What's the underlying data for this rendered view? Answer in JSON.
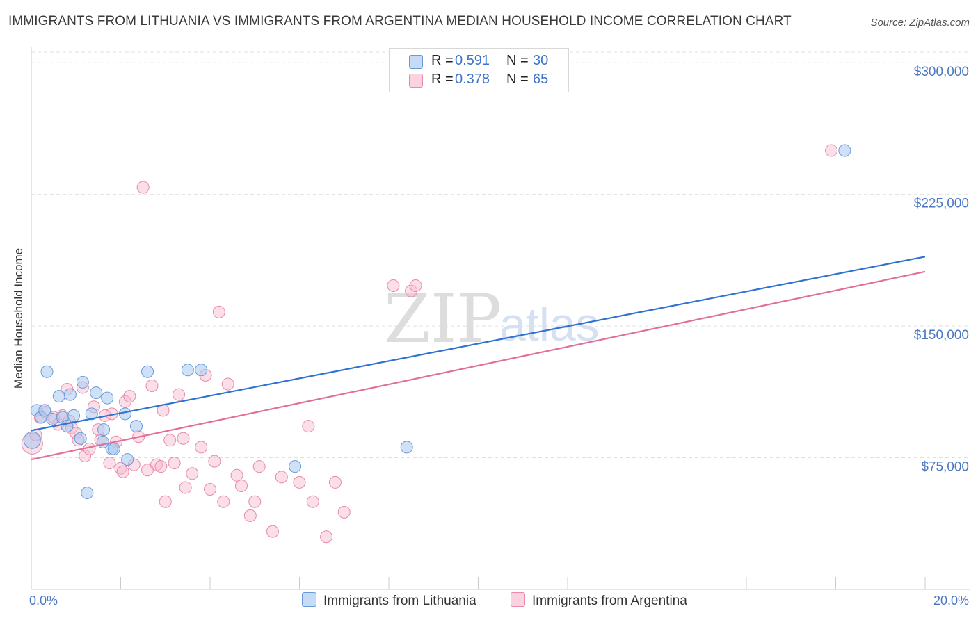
{
  "title": "IMMIGRANTS FROM LITHUANIA VS IMMIGRANTS FROM ARGENTINA MEDIAN HOUSEHOLD INCOME CORRELATION CHART",
  "source": "Source: ZipAtlas.com",
  "watermark": {
    "zip": "ZIP",
    "atlas": "atlas"
  },
  "legend": {
    "rows": [
      {
        "r_label": "R =",
        "r_value": "0.591",
        "n_label": "N =",
        "n_value": "30",
        "color": "#a8c8f0"
      },
      {
        "r_label": "R =",
        "r_value": "0.378",
        "n_label": "N =",
        "n_value": "65",
        "color": "#f6b8cc"
      }
    ]
  },
  "bottom_legend": {
    "lithuania": "Immigrants from Lithuania",
    "argentina": "Immigrants from Argentina"
  },
  "colors": {
    "lithuania_fill": "#a8c8f0",
    "lithuania_stroke": "#6a9ad8",
    "lithuania_line": "#2f72d0",
    "argentina_fill": "#f6b8cc",
    "argentina_stroke": "#e88aa8",
    "argentina_line": "#e0709a",
    "tick_text": "#4a78c4",
    "grid": "#e0e0e0"
  },
  "chart_data": {
    "type": "scatter",
    "title": "IMMIGRANTS FROM LITHUANIA VS IMMIGRANTS FROM ARGENTINA MEDIAN HOUSEHOLD INCOME CORRELATION CHART",
    "xlabel": "",
    "ylabel": "Median Household Income",
    "xlim": [
      0,
      20
    ],
    "ylim": [
      0,
      308000
    ],
    "x_tick_labels": [
      "0.0%",
      "20.0%"
    ],
    "y_ticks": [
      75000,
      150000,
      225000,
      300000
    ],
    "y_tick_labels": [
      "$75,000",
      "$150,000",
      "$225,000",
      "$300,000"
    ],
    "grid": true,
    "legend_position": "top-center",
    "series": [
      {
        "name": "Immigrants from Lithuania",
        "r": 0.591,
        "n": 30,
        "trend": {
          "x": [
            0,
            20
          ],
          "y": [
            90500,
            189500
          ]
        },
        "points": [
          [
            0.02,
            85000
          ],
          [
            0.12,
            102000
          ],
          [
            0.22,
            98000
          ],
          [
            0.3,
            102000
          ],
          [
            0.35,
            124000
          ],
          [
            0.47,
            97000
          ],
          [
            0.62,
            110000
          ],
          [
            0.7,
            98000
          ],
          [
            0.8,
            93000
          ],
          [
            0.87,
            111000
          ],
          [
            0.95,
            99000
          ],
          [
            1.1,
            86000
          ],
          [
            1.15,
            118000
          ],
          [
            1.35,
            100000
          ],
          [
            1.45,
            112000
          ],
          [
            1.6,
            84000
          ],
          [
            1.62,
            91000
          ],
          [
            1.7,
            109000
          ],
          [
            1.8,
            80000
          ],
          [
            1.85,
            80000
          ],
          [
            2.1,
            100000
          ],
          [
            2.15,
            74000
          ],
          [
            2.35,
            93000
          ],
          [
            2.6,
            124000
          ],
          [
            3.5,
            125000
          ],
          [
            3.8,
            125000
          ],
          [
            5.9,
            70000
          ],
          [
            1.25,
            55000
          ],
          [
            8.4,
            81000
          ],
          [
            18.2,
            250000
          ]
        ]
      },
      {
        "name": "Immigrants from Argentina",
        "r": 0.378,
        "n": 65,
        "trend": {
          "x": [
            0,
            20
          ],
          "y": [
            74000,
            181000
          ]
        },
        "points": [
          [
            0.02,
            83000
          ],
          [
            0.1,
            88000
          ],
          [
            0.2,
            98000
          ],
          [
            0.32,
            101000
          ],
          [
            0.5,
            98000
          ],
          [
            0.6,
            94000
          ],
          [
            0.7,
            99000
          ],
          [
            0.8,
            114000
          ],
          [
            0.85,
            96000
          ],
          [
            0.9,
            92000
          ],
          [
            1.0,
            89000
          ],
          [
            1.05,
            85000
          ],
          [
            1.15,
            115000
          ],
          [
            1.2,
            76000
          ],
          [
            1.3,
            80000
          ],
          [
            1.4,
            104000
          ],
          [
            1.5,
            91000
          ],
          [
            1.55,
            85000
          ],
          [
            1.65,
            99000
          ],
          [
            1.75,
            72000
          ],
          [
            1.8,
            100000
          ],
          [
            1.9,
            84000
          ],
          [
            2.0,
            69000
          ],
          [
            2.05,
            67000
          ],
          [
            2.1,
            107000
          ],
          [
            2.2,
            110000
          ],
          [
            2.3,
            71000
          ],
          [
            2.4,
            87000
          ],
          [
            2.5,
            229000
          ],
          [
            2.6,
            68000
          ],
          [
            2.7,
            116000
          ],
          [
            2.8,
            71000
          ],
          [
            2.9,
            70000
          ],
          [
            2.95,
            102000
          ],
          [
            3.0,
            50000
          ],
          [
            3.1,
            85000
          ],
          [
            3.2,
            72000
          ],
          [
            3.3,
            111000
          ],
          [
            3.4,
            86000
          ],
          [
            3.45,
            58000
          ],
          [
            3.6,
            66000
          ],
          [
            3.8,
            81000
          ],
          [
            3.9,
            122000
          ],
          [
            4.0,
            57000
          ],
          [
            4.1,
            73000
          ],
          [
            4.2,
            158000
          ],
          [
            4.3,
            50000
          ],
          [
            4.4,
            117000
          ],
          [
            4.6,
            65000
          ],
          [
            4.7,
            59000
          ],
          [
            4.9,
            42000
          ],
          [
            5.0,
            50000
          ],
          [
            5.1,
            70000
          ],
          [
            5.4,
            33000
          ],
          [
            5.6,
            64000
          ],
          [
            6.0,
            61000
          ],
          [
            6.2,
            93000
          ],
          [
            6.3,
            50000
          ],
          [
            6.6,
            30000
          ],
          [
            6.8,
            61000
          ],
          [
            7.0,
            44000
          ],
          [
            8.1,
            173000
          ],
          [
            8.5,
            170000
          ],
          [
            8.6,
            173000
          ],
          [
            17.9,
            250000
          ]
        ]
      }
    ]
  }
}
